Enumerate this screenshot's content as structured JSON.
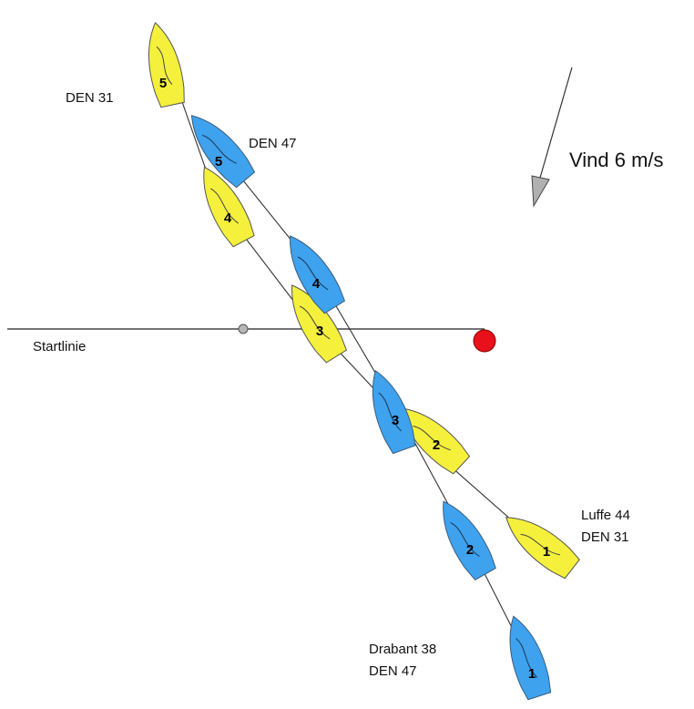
{
  "start_line": {
    "label": "Startlinie"
  },
  "wind": {
    "label": "Vind 6 m/s"
  },
  "colors": {
    "yellow": "#f5f03c",
    "blue": "#3ea2ee",
    "mark": "#e8101a",
    "pin": "#b5b5b5",
    "line": "#222222"
  },
  "boats": {
    "yellow": {
      "labels": [
        "DEN 31",
        "Luffe 44",
        "DEN 31"
      ],
      "positions": [
        "1",
        "2",
        "3",
        "4",
        "5"
      ]
    },
    "blue": {
      "labels": [
        "DEN 47",
        "Drabant 38",
        "DEN 47"
      ],
      "positions": [
        "1",
        "2",
        "3",
        "4",
        "5"
      ]
    }
  }
}
